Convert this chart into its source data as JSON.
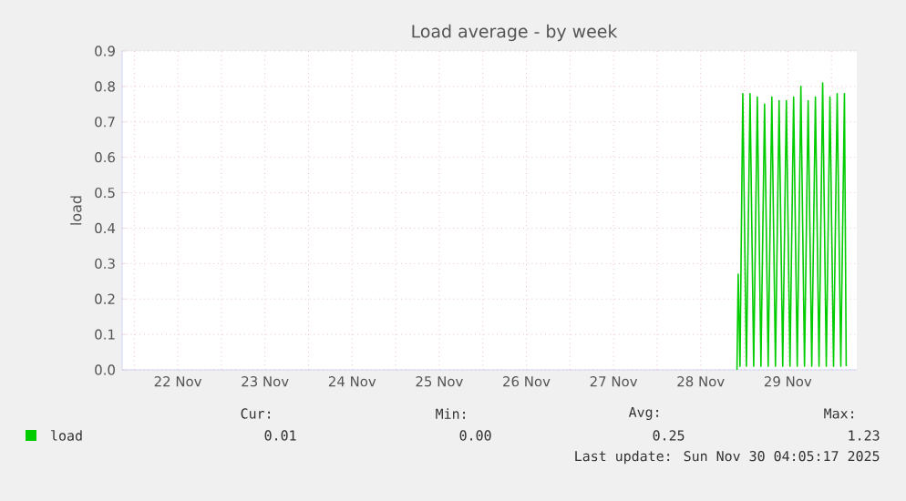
{
  "chart_data": {
    "type": "line",
    "title": "Load average - by week",
    "ylabel": "load",
    "xlim": [
      "2025-11-21T20:40",
      "2025-11-30T07:00"
    ],
    "ylim": [
      0,
      0.9
    ],
    "xticks": [
      {
        "value": "2025-11-22T00:00",
        "label": null
      },
      {
        "value": "2025-11-22T12:00",
        "label": "22 Nov"
      },
      {
        "value": "2025-11-23T00:00",
        "label": null
      },
      {
        "value": "2025-11-23T12:00",
        "label": "23 Nov"
      },
      {
        "value": "2025-11-24T00:00",
        "label": null
      },
      {
        "value": "2025-11-24T12:00",
        "label": "24 Nov"
      },
      {
        "value": "2025-11-25T00:00",
        "label": null
      },
      {
        "value": "2025-11-25T12:00",
        "label": "25 Nov"
      },
      {
        "value": "2025-11-26T00:00",
        "label": null
      },
      {
        "value": "2025-11-26T12:00",
        "label": "26 Nov"
      },
      {
        "value": "2025-11-27T00:00",
        "label": null
      },
      {
        "value": "2025-11-27T12:00",
        "label": "27 Nov"
      },
      {
        "value": "2025-11-28T00:00",
        "label": null
      },
      {
        "value": "2025-11-28T12:00",
        "label": "28 Nov"
      },
      {
        "value": "2025-11-29T00:00",
        "label": null
      },
      {
        "value": "2025-11-29T12:00",
        "label": "29 Nov"
      },
      {
        "value": "2025-11-30T00:00",
        "label": null
      }
    ],
    "yticks": [
      {
        "value": 0,
        "label": "0.0"
      },
      {
        "value": 0.1,
        "label": "0.1"
      },
      {
        "value": 0.2,
        "label": "0.2"
      },
      {
        "value": 0.3,
        "label": "0.3"
      },
      {
        "value": 0.4,
        "label": "0.4"
      },
      {
        "value": 0.5,
        "label": "0.5"
      },
      {
        "value": 0.6,
        "label": "0.6"
      },
      {
        "value": 0.7,
        "label": "0.7"
      },
      {
        "value": 0.8,
        "label": "0.8"
      },
      {
        "value": 0.9,
        "label": "0.9"
      }
    ],
    "grid": true,
    "legend": "bottom left",
    "series": [
      {
        "name": "load",
        "color": "#00cc00",
        "x": [
          "2025-11-28T22:00",
          "2025-11-28T22:20",
          "2025-11-28T22:50",
          "2025-11-28T23:36",
          "2025-11-29T00:36",
          "2025-11-29T01:36",
          "2025-11-29T02:36",
          "2025-11-29T03:36",
          "2025-11-29T04:36",
          "2025-11-29T05:36",
          "2025-11-29T06:36",
          "2025-11-29T07:36",
          "2025-11-29T08:36",
          "2025-11-29T09:36",
          "2025-11-29T10:36",
          "2025-11-29T11:36",
          "2025-11-29T12:36",
          "2025-11-29T13:36",
          "2025-11-29T14:36",
          "2025-11-29T15:36",
          "2025-11-29T16:36",
          "2025-11-29T17:36",
          "2025-11-29T18:36",
          "2025-11-29T19:36",
          "2025-11-29T20:36",
          "2025-11-29T21:36",
          "2025-11-29T22:36",
          "2025-11-29T23:36",
          "2025-11-30T00:36",
          "2025-11-30T01:36",
          "2025-11-30T02:36",
          "2025-11-30T03:36",
          "2025-11-30T04:05"
        ],
        "values": [
          0,
          0.27,
          0.01,
          0.78,
          0.01,
          0.78,
          0.01,
          0.77,
          0.01,
          0.75,
          0.01,
          0.77,
          0.01,
          0.76,
          0.01,
          0.76,
          0.01,
          0.77,
          0.01,
          0.8,
          0.01,
          0.76,
          0.01,
          0.77,
          0.01,
          0.81,
          0.01,
          0.77,
          0.01,
          0.78,
          0.01,
          0.78,
          0.01
        ]
      }
    ],
    "annotations": [
      "Cur:",
      "Min:",
      "Avg:",
      "Max:",
      "0.01",
      "0.00",
      "0.25",
      "1.23",
      "Last update: Sun Nov 30 04:05:17 2025"
    ]
  }
}
